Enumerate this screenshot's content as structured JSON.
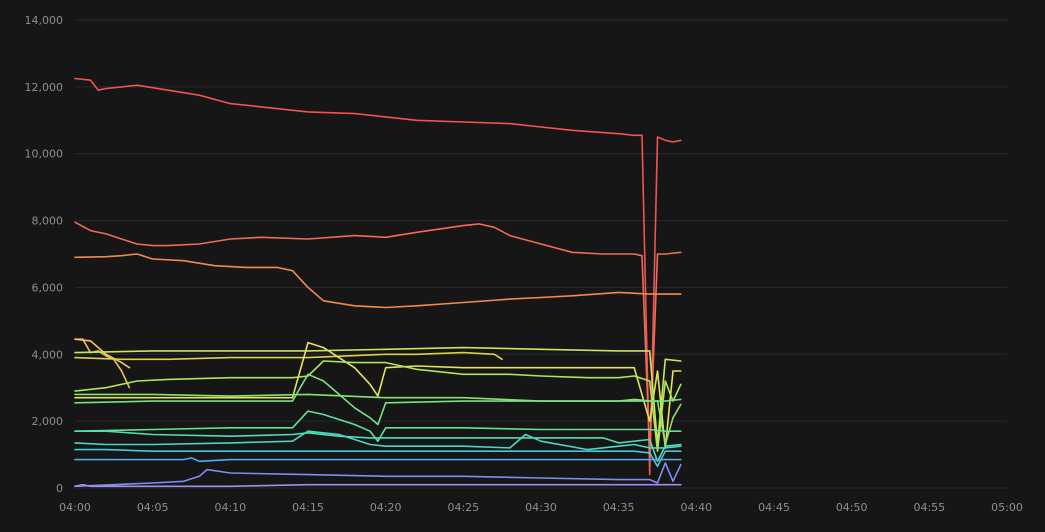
{
  "chart_data": {
    "type": "line",
    "title": "",
    "xlabel": "",
    "ylabel": "",
    "grid": true,
    "legend": "none",
    "xlim": [
      "04:00",
      "05:00"
    ],
    "ylim": [
      0,
      14000
    ],
    "x_tick_labels": [
      "04:00",
      "04:05",
      "04:10",
      "04:15",
      "04:20",
      "04:25",
      "04:30",
      "04:35",
      "04:40",
      "04:45",
      "04:50",
      "04:55",
      "05:00"
    ],
    "y_tick_labels": [
      "0",
      "2,000",
      "4,000",
      "6,000",
      "8,000",
      "10,000",
      "12,000",
      "14,000"
    ],
    "series": [
      {
        "color": "#f05454",
        "x": [
          "04:00",
          "04:01",
          "04:01:30",
          "04:02",
          "04:03",
          "04:04",
          "04:06",
          "04:08",
          "04:10",
          "04:12",
          "04:15",
          "04:18",
          "04:20",
          "04:22",
          "04:25",
          "04:28",
          "04:30",
          "04:32",
          "04:35",
          "04:36",
          "04:36:30",
          "04:37",
          "04:37:30",
          "04:38",
          "04:38:30",
          "04:39"
        ],
        "y": [
          12250,
          12200,
          11900,
          11950,
          12000,
          12050,
          11900,
          11750,
          11500,
          11400,
          11250,
          11200,
          11100,
          11000,
          10950,
          10900,
          10800,
          10700,
          10600,
          10550,
          10550,
          400,
          10500,
          10400,
          10350,
          10400
        ]
      },
      {
        "color": "#f26a5a",
        "x": [
          "04:00",
          "04:01",
          "04:02",
          "04:03",
          "04:04",
          "04:05",
          "04:06",
          "04:08",
          "04:10",
          "04:12",
          "04:15",
          "04:18",
          "04:20",
          "04:22",
          "04:25",
          "04:26",
          "04:27",
          "04:28",
          "04:30",
          "04:32",
          "04:34",
          "04:36",
          "04:36:30",
          "04:37",
          "04:37:30",
          "04:38",
          "04:39"
        ],
        "y": [
          7950,
          7700,
          7600,
          7450,
          7300,
          7250,
          7250,
          7300,
          7450,
          7500,
          7450,
          7550,
          7500,
          7650,
          7850,
          7900,
          7800,
          7550,
          7300,
          7050,
          7000,
          7000,
          6950,
          1000,
          7000,
          7000,
          7050
        ]
      },
      {
        "color": "#f08a4e",
        "x": [
          "04:00",
          "04:02",
          "04:03",
          "04:04",
          "04:05",
          "04:07",
          "04:09",
          "04:11",
          "04:12",
          "04:13",
          "04:14",
          "04:15",
          "04:16",
          "04:18",
          "04:20",
          "04:22",
          "04:25",
          "04:28",
          "04:30",
          "04:32",
          "04:35",
          "04:37",
          "04:38",
          "04:39"
        ],
        "y": [
          6900,
          6920,
          6950,
          7000,
          6850,
          6800,
          6650,
          6600,
          6600,
          6600,
          6500,
          6000,
          5600,
          5450,
          5400,
          5450,
          5550,
          5650,
          5700,
          5750,
          5850,
          5800,
          5800,
          5800
        ]
      },
      {
        "color": "#e8c05a",
        "x": [
          "04:00",
          "04:00:30",
          "04:01",
          "04:01:30",
          "04:02",
          "04:02:30",
          "04:03",
          "04:03:30"
        ],
        "y": [
          4450,
          4450,
          4050,
          4100,
          3950,
          3850,
          3500,
          3000
        ]
      },
      {
        "color": "#f0c860",
        "x": [
          "04:00",
          "04:01",
          "04:02",
          "04:03",
          "04:03:30"
        ],
        "y": [
          4450,
          4400,
          4000,
          3750,
          3600
        ]
      },
      {
        "color": "#d9d14d",
        "x": [
          "04:00",
          "04:03",
          "04:06",
          "04:10",
          "04:15",
          "04:20",
          "04:22",
          "04:25",
          "04:27",
          "04:27:30"
        ],
        "y": [
          3900,
          3850,
          3850,
          3900,
          3900,
          4000,
          4000,
          4050,
          4000,
          3850
        ]
      },
      {
        "color": "#e6e35c",
        "x": [
          "04:00",
          "04:05",
          "04:10",
          "04:14",
          "04:15",
          "04:16",
          "04:18",
          "04:19",
          "04:19:30",
          "04:20",
          "04:22",
          "04:25",
          "04:30",
          "04:33",
          "04:35",
          "04:36",
          "04:37",
          "04:37:30",
          "04:38",
          "04:38:30",
          "04:39"
        ],
        "y": [
          2700,
          2700,
          2700,
          2700,
          4350,
          4200,
          3600,
          3100,
          2750,
          3600,
          3650,
          3600,
          3600,
          3600,
          3600,
          3600,
          2000,
          3500,
          1200,
          3500,
          3500
        ]
      },
      {
        "color": "#c5e85c",
        "x": [
          "04:00",
          "04:05",
          "04:10",
          "04:15",
          "04:20",
          "04:25",
          "04:30",
          "04:35",
          "04:37",
          "04:37:30",
          "04:38",
          "04:39"
        ],
        "y": [
          4050,
          4100,
          4100,
          4100,
          4150,
          4200,
          4150,
          4100,
          4100,
          1300,
          3850,
          3800
        ]
      },
      {
        "color": "#b0e45a",
        "x": [
          "04:00",
          "04:02",
          "04:04",
          "04:06",
          "04:10",
          "04:14",
          "04:15",
          "04:16",
          "04:18",
          "04:20",
          "04:22",
          "04:25",
          "04:28",
          "04:30",
          "04:33",
          "04:35",
          "04:36",
          "04:37",
          "04:37:30",
          "04:38",
          "04:38:30",
          "04:39"
        ],
        "y": [
          2900,
          3000,
          3200,
          3250,
          3300,
          3300,
          3350,
          3800,
          3750,
          3750,
          3550,
          3400,
          3400,
          3350,
          3300,
          3300,
          3350,
          3200,
          1100,
          3200,
          2600,
          3100
        ]
      },
      {
        "color": "#8ee26a",
        "x": [
          "04:00",
          "04:05",
          "04:10",
          "04:15",
          "04:20",
          "04:25",
          "04:30",
          "04:35",
          "04:36",
          "04:37",
          "04:37:30",
          "04:38",
          "04:38:30",
          "04:39"
        ],
        "y": [
          2800,
          2800,
          2750,
          2800,
          2700,
          2700,
          2600,
          2600,
          2650,
          2600,
          2600,
          1300,
          2100,
          2500
        ]
      },
      {
        "color": "#79e08a",
        "x": [
          "04:00",
          "04:05",
          "04:10",
          "04:14",
          "04:15",
          "04:16",
          "04:17",
          "04:18",
          "04:19",
          "04:19:30",
          "04:20",
          "04:25",
          "04:30",
          "04:35",
          "04:37",
          "04:38",
          "04:39"
        ],
        "y": [
          2550,
          2600,
          2600,
          2600,
          3400,
          3200,
          2800,
          2400,
          2100,
          1900,
          2550,
          2600,
          2600,
          2600,
          2600,
          2600,
          2650
        ]
      },
      {
        "color": "#62e09c",
        "x": [
          "04:00",
          "04:05",
          "04:10",
          "04:14",
          "04:15",
          "04:16",
          "04:18",
          "04:19",
          "04:19:30",
          "04:20",
          "04:25",
          "04:30",
          "04:35",
          "04:37",
          "04:38",
          "04:39"
        ],
        "y": [
          1700,
          1750,
          1800,
          1800,
          2300,
          2200,
          1900,
          1700,
          1400,
          1800,
          1800,
          1750,
          1750,
          1750,
          1700,
          1700
        ]
      },
      {
        "color": "#55dcb0",
        "x": [
          "04:00",
          "04:02",
          "04:05",
          "04:10",
          "04:14",
          "04:15",
          "04:17",
          "04:19",
          "04:20",
          "04:25",
          "04:30",
          "04:34",
          "04:35",
          "04:37",
          "04:37:30",
          "04:38",
          "04:39"
        ],
        "y": [
          1700,
          1700,
          1600,
          1550,
          1600,
          1650,
          1550,
          1500,
          1500,
          1500,
          1500,
          1500,
          1350,
          1450,
          800,
          1250,
          1300
        ]
      },
      {
        "color": "#4ed6c4",
        "x": [
          "04:00",
          "04:02",
          "04:05",
          "04:10",
          "04:14",
          "04:15",
          "04:17",
          "04:19",
          "04:20",
          "04:25",
          "04:28",
          "04:29",
          "04:30",
          "04:33",
          "04:35",
          "04:36",
          "04:37",
          "04:38",
          "04:39"
        ],
        "y": [
          1350,
          1300,
          1300,
          1350,
          1400,
          1700,
          1600,
          1300,
          1250,
          1250,
          1200,
          1600,
          1400,
          1150,
          1250,
          1300,
          1200,
          1200,
          1250
        ]
      },
      {
        "color": "#48c8d8",
        "x": [
          "04:00",
          "04:02",
          "04:05",
          "04:10",
          "04:15",
          "04:20",
          "04:25",
          "04:30",
          "04:35",
          "04:36",
          "04:37",
          "04:37:30",
          "04:38",
          "04:39"
        ],
        "y": [
          1150,
          1150,
          1100,
          1100,
          1100,
          1100,
          1100,
          1100,
          1100,
          1100,
          1050,
          650,
          1100,
          1100
        ]
      },
      {
        "color": "#5aa8e8",
        "x": [
          "04:00",
          "04:05",
          "04:07",
          "04:07:30",
          "04:08",
          "04:10",
          "04:15",
          "04:20",
          "04:25",
          "04:30",
          "04:35",
          "04:37",
          "04:38",
          "04:39"
        ],
        "y": [
          850,
          850,
          850,
          900,
          800,
          850,
          850,
          850,
          850,
          850,
          850,
          850,
          850,
          850
        ]
      },
      {
        "color": "#7f8ef0",
        "x": [
          "04:00",
          "04:05",
          "04:07",
          "04:08",
          "04:08:30",
          "04:10",
          "04:15",
          "04:20",
          "04:25",
          "04:30",
          "04:35",
          "04:37",
          "04:37:30",
          "04:38",
          "04:38:30",
          "04:39"
        ],
        "y": [
          50,
          150,
          200,
          350,
          550,
          450,
          400,
          350,
          350,
          300,
          250,
          250,
          150,
          750,
          200,
          700
        ]
      },
      {
        "color": "#a08ef0",
        "x": [
          "04:00",
          "04:00:30",
          "04:01",
          "04:05",
          "04:10",
          "04:15",
          "04:20",
          "04:25",
          "04:30",
          "04:35",
          "04:37",
          "04:38",
          "04:39"
        ],
        "y": [
          50,
          100,
          50,
          50,
          50,
          100,
          100,
          100,
          100,
          100,
          100,
          100,
          100
        ]
      }
    ]
  }
}
